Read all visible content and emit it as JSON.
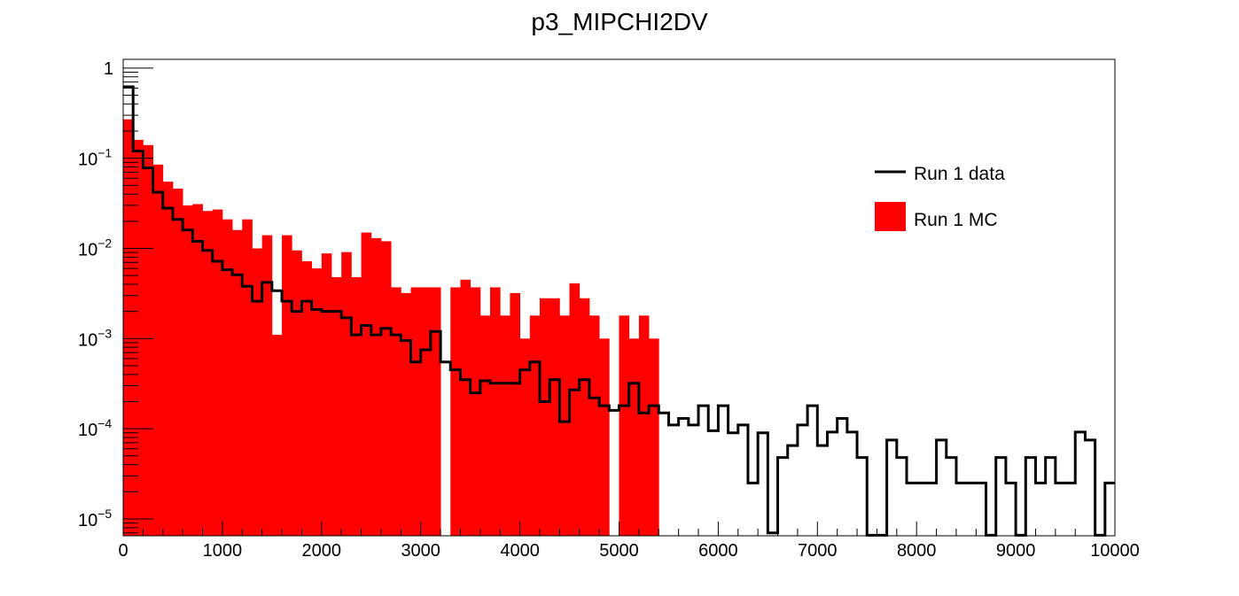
{
  "chart_data": {
    "type": "histogram",
    "title": "p3_MIPCHI2DV",
    "xlabel": "",
    "ylabel": "",
    "y_scale": "log",
    "xlim": [
      0,
      10000
    ],
    "ylim": [
      6.5e-06,
      1.25
    ],
    "bin_width": 100,
    "x_ticks": [
      "0",
      "1000",
      "2000",
      "3000",
      "4000",
      "5000",
      "6000",
      "7000",
      "8000",
      "9000",
      "10000"
    ],
    "y_ticks": [
      {
        "base": "1",
        "exp": ""
      },
      {
        "base": "10",
        "exp": "−1"
      },
      {
        "base": "10",
        "exp": "−2"
      },
      {
        "base": "10",
        "exp": "−3"
      },
      {
        "base": "10",
        "exp": "−4"
      },
      {
        "base": "10",
        "exp": "−5"
      }
    ],
    "legend": {
      "placement": "top-right"
    },
    "series": [
      {
        "name": "Run 1 MC",
        "style": "filled",
        "color": "#ff0000",
        "values": [
          0.27,
          0.16,
          0.14,
          0.085,
          0.055,
          0.046,
          0.03,
          0.031,
          0.026,
          0.027,
          0.021,
          0.016,
          0.021,
          0.01,
          0.014,
          0.0011,
          0.014,
          0.0095,
          0.0072,
          0.006,
          0.0088,
          0.0048,
          0.0091,
          0.0048,
          0.015,
          0.013,
          0.012,
          0.0037,
          0.0032,
          0.0037,
          0.0037,
          0.0037,
          0.0,
          0.0037,
          0.0045,
          0.0037,
          0.0018,
          0.0037,
          0.0018,
          0.0032,
          0.001,
          0.0018,
          0.0028,
          0.0028,
          0.0018,
          0.0041,
          0.0028,
          0.0018,
          0.001,
          0.0,
          0.0018,
          0.001,
          0.0018,
          0.001,
          0.0,
          0.0,
          0.0,
          0.0,
          0.0,
          0.0,
          0.0,
          0.0,
          0.0,
          0.0,
          0.0,
          0.0,
          0.0,
          0.0,
          0.0,
          0.0,
          0.0,
          0.0,
          0.0,
          0.0,
          0.0,
          0.0,
          0.0,
          0.0,
          0.0,
          0.0,
          0.0,
          0.0,
          0.0,
          0.0,
          0.0,
          0.0,
          0.0,
          0.0,
          0.0,
          0.0,
          0.0,
          0.0,
          0.0,
          0.0,
          0.0,
          0.0,
          0.0,
          0.0,
          0.0,
          0.0
        ]
      },
      {
        "name": "Run 1 data",
        "style": "step",
        "color": "#000000",
        "values": [
          0.62,
          0.12,
          0.078,
          0.042,
          0.028,
          0.021,
          0.016,
          0.012,
          0.0095,
          0.0072,
          0.0058,
          0.0051,
          0.0038,
          0.0026,
          0.0042,
          0.0034,
          0.0026,
          0.002,
          0.0026,
          0.0021,
          0.002,
          0.002,
          0.0017,
          0.0011,
          0.0014,
          0.0011,
          0.0013,
          0.0011,
          0.00095,
          0.00055,
          0.00075,
          0.0012,
          0.00055,
          0.00045,
          0.00035,
          0.00025,
          0.00034,
          0.00032,
          0.00032,
          0.00032,
          0.00045,
          0.00055,
          0.0002,
          0.00035,
          0.00012,
          0.00027,
          0.00035,
          0.00022,
          0.00018,
          0.00016,
          0.00018,
          0.00032,
          0.00015,
          0.00018,
          0.00015,
          0.00011,
          0.00013,
          0.00011,
          0.00018,
          9.5e-05,
          0.00018,
          9e-05,
          0.00011,
          2.5e-05,
          9e-05,
          7e-06,
          4.8e-05,
          6.5e-05,
          0.00011,
          0.00018,
          6.5e-05,
          9.2e-05,
          0.00013,
          9.2e-05,
          4.8e-05,
          6.6e-06,
          6.6e-06,
          7.5e-05,
          4.8e-05,
          2.5e-05,
          2.5e-05,
          2.5e-05,
          7.5e-05,
          4.8e-05,
          2.5e-05,
          2.5e-05,
          2.5e-05,
          6.6e-06,
          4.8e-05,
          2.5e-05,
          6.6e-06,
          4.8e-05,
          2.5e-05,
          4.8e-05,
          2.5e-05,
          2.5e-05,
          9.2e-05,
          7.5e-05,
          6.6e-06,
          2.5e-05
        ]
      }
    ]
  }
}
